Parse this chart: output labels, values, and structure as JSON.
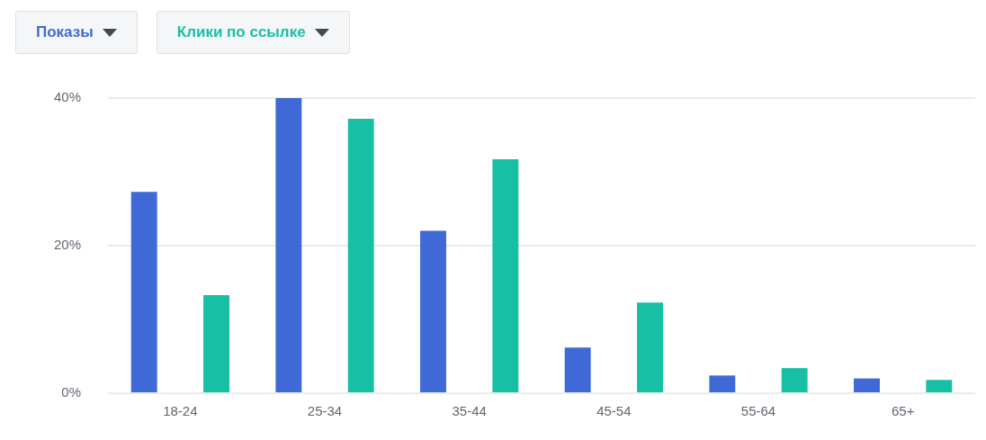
{
  "chart_data": {
    "type": "bar",
    "categories": [
      "18-24",
      "25-34",
      "35-44",
      "45-54",
      "55-64",
      "65+"
    ],
    "series": [
      {
        "name": "Показы",
        "color": "#3f69d6",
        "values": [
          27.3,
          40,
          22,
          6.2,
          2.4,
          2
        ]
      },
      {
        "name": "Клики по ссылке",
        "color": "#17bfa5",
        "values": [
          13.3,
          37.2,
          31.7,
          12.3,
          3.4,
          1.8
        ]
      }
    ],
    "ylim": [
      0,
      40
    ],
    "yticks": [
      {
        "value": 0,
        "label": "0%"
      },
      {
        "value": 20,
        "label": "20%"
      },
      {
        "value": 40,
        "label": "40%"
      }
    ],
    "grid": "y",
    "legend": "top left"
  }
}
